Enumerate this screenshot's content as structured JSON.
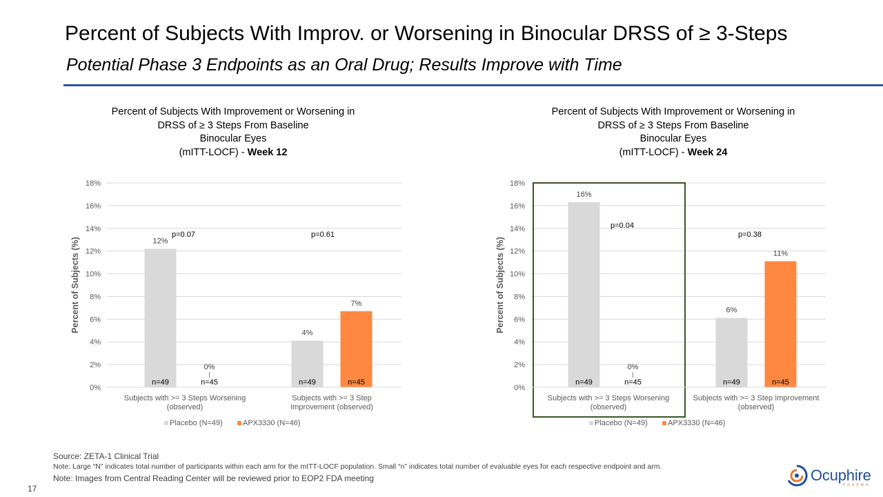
{
  "slide": {
    "title": "Percent of Subjects With Improv. or Worsening in Binocular DRSS of ≥ 3-Steps",
    "subtitle": "Potential Phase 3 Endpoints as an Oral Drug; Results Improve with Time",
    "page_number": "17",
    "accent_color": "#2f5597"
  },
  "footer": {
    "source": "Source: ZETA-1 Clinical Trial",
    "note1": "Note: Large “N” indicates total number of participants within each arm for the mITT-LOCF population. Small “n” indicates total number of evaluable eyes for each respective endpoint and arm.",
    "note2": "Note: Images from Central Reading Center will be reviewed prior to EOP2 FDA meeting"
  },
  "logo": {
    "name": "Ocuphire",
    "sub": "PHARMA",
    "icon": "ocuphire-logo-icon"
  },
  "chart_data": [
    {
      "type": "bar",
      "title_lines": [
        "Percent of Subjects With Improvement  or Worsening in",
        "DRSS of ≥ 3 Steps From Baseline",
        "Binocular Eyes",
        "(mITT-LOCF)  - "
      ],
      "title_bold": "Week 12",
      "ylabel": "Percent of Subjects (%)",
      "ylim": [
        0,
        18
      ],
      "yticks": [
        0,
        2,
        4,
        6,
        8,
        10,
        12,
        14,
        16,
        18
      ],
      "ytick_labels": [
        "0%",
        "2%",
        "4%",
        "6%",
        "8%",
        "10%",
        "12%",
        "14%",
        "16%",
        "18%"
      ],
      "gridlines": true,
      "categories": [
        [
          "Subjects with >= 3 Steps Worsening",
          "(observed)"
        ],
        [
          "Subjects with >= 3 Step",
          "Improvement (observed)"
        ]
      ],
      "series": [
        {
          "name": "Placebo (N=49)",
          "color": "#d9d9d9",
          "values": [
            12.2,
            4.1
          ],
          "labels": [
            "12%",
            "4%"
          ],
          "n": [
            "n=49",
            "n=49"
          ]
        },
        {
          "name": "APX3330 (N=46)",
          "color": "#ff8841",
          "values": [
            0,
            6.7
          ],
          "labels": [
            "0%",
            "7%"
          ],
          "n": [
            "n=45",
            "n=45"
          ]
        }
      ],
      "p_values": [
        "p=0.07",
        "p=0.61"
      ],
      "highlight_group": null
    },
    {
      "type": "bar",
      "title_lines": [
        "Percent of Subjects With Improvement  or Worsening in",
        "DRSS of ≥ 3 Steps From Baseline",
        "Binocular Eyes",
        "(mITT-LOCF)  - "
      ],
      "title_bold": "Week 24",
      "ylabel": "Percent of Subjects (%)",
      "ylim": [
        0,
        18
      ],
      "yticks": [
        0,
        2,
        4,
        6,
        8,
        10,
        12,
        14,
        16,
        18
      ],
      "ytick_labels": [
        "0%",
        "2%",
        "4%",
        "6%",
        "8%",
        "10%",
        "12%",
        "14%",
        "16%",
        "18%"
      ],
      "gridlines": true,
      "categories": [
        [
          "Subjects with >= 3 Steps Worsening",
          "(observed)"
        ],
        [
          "Subjects with >= 3 Step Improvement",
          "(observed)"
        ]
      ],
      "series": [
        {
          "name": "Placebo (N=49)",
          "color": "#d9d9d9",
          "values": [
            16.3,
            6.1
          ],
          "labels": [
            "16%",
            "6%"
          ],
          "n": [
            "n=49",
            "n=49"
          ]
        },
        {
          "name": "APX3330 (N=46)",
          "color": "#ff8841",
          "values": [
            0,
            11.1
          ],
          "labels": [
            "0%",
            "11%"
          ],
          "n": [
            "n=45",
            "n=45"
          ]
        }
      ],
      "p_values": [
        "p=0.04",
        "p=0.38"
      ],
      "highlight_group": 0,
      "highlight_color": "#375623"
    }
  ]
}
